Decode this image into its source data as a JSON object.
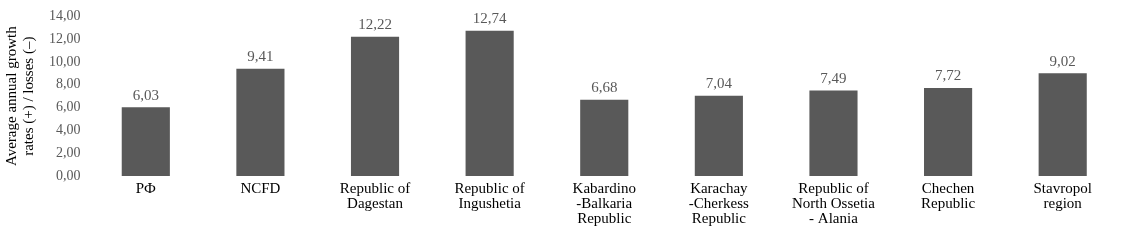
{
  "chart_data": {
    "type": "bar",
    "y_label": "Average annual growth rates (+) / losses (–)",
    "categories": [
      "РФ",
      "NCFD",
      "Republic of Dagestan",
      "Republic of Ingushetia",
      "Kabardino-Balkaria Republic",
      "Karachay-Cherkess Republic",
      "Republic of North Ossetia - Alania",
      "Chechen Republic",
      "Stavropol region"
    ],
    "values": [
      6.03,
      9.41,
      12.22,
      12.74,
      6.68,
      7.04,
      7.49,
      7.72,
      9.02
    ],
    "value_labels": [
      "6,03",
      "9,41",
      "12,22",
      "12,74",
      "6,68",
      "7,04",
      "7,49",
      "7,72",
      "9,02"
    ],
    "color": "#595959",
    "ylim": [
      0,
      14
    ],
    "yticks": [
      {
        "value": 0,
        "label": "0,00"
      },
      {
        "value": 2,
        "label": "2,00"
      },
      {
        "value": 4,
        "label": "4,00"
      },
      {
        "value": 6,
        "label": "6,00"
      },
      {
        "value": 8,
        "label": "8,00"
      },
      {
        "value": 10,
        "label": "10,00"
      },
      {
        "value": 12,
        "label": "12,00"
      },
      {
        "value": 14,
        "label": "14,00"
      }
    ],
    "grid": false,
    "data_labels": true
  }
}
